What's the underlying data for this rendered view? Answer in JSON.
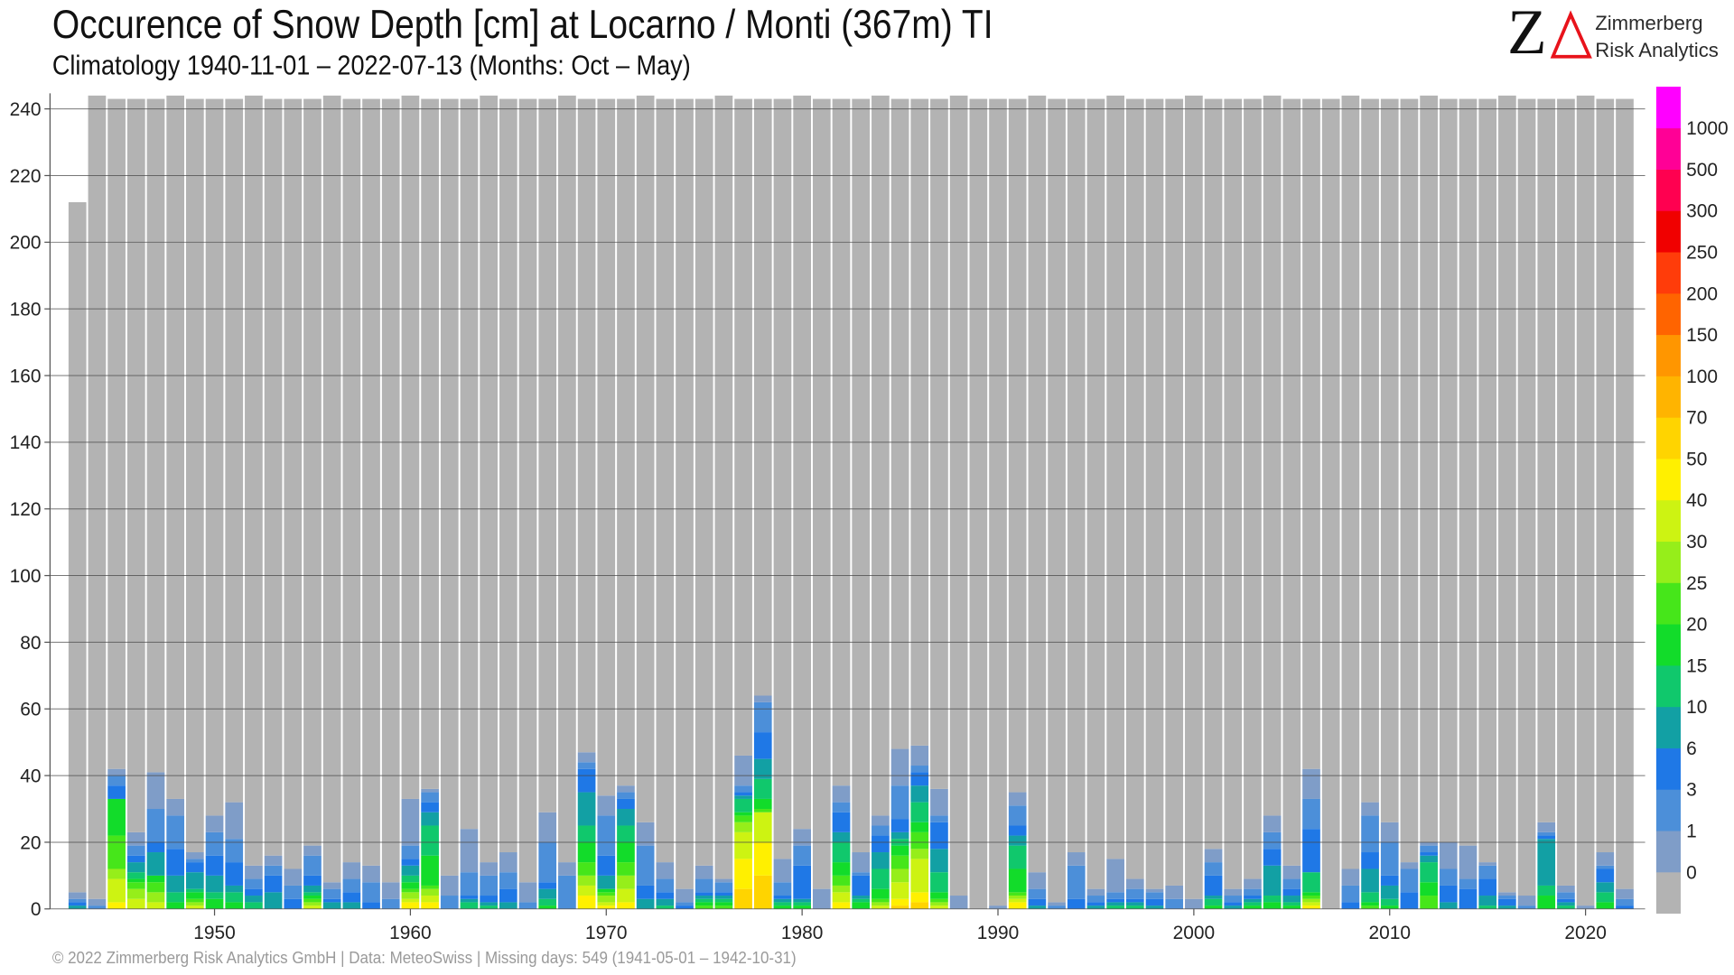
{
  "header": {
    "title": "Occurence of Snow Depth [cm] at Locarno / Monti (367m) TI",
    "subtitle": "Climatology 1940-11-01 – 2022-07-13 (Months: Oct – May)"
  },
  "logo": {
    "letter": "Z",
    "line1": "Zimmerberg",
    "line2": "Risk Analytics",
    "accent_color": "#e8131b"
  },
  "footer": {
    "text": "©  2022 Zimmerberg Risk Analytics GmbH | Data: MeteoSwiss | Missing days: 549 (1941-05-01 – 1942-10-31)"
  },
  "chart_data": {
    "type": "bar",
    "stacked": true,
    "ylim": [
      0,
      240
    ],
    "yticks": [
      0,
      20,
      40,
      60,
      80,
      100,
      120,
      140,
      160,
      180,
      200,
      220,
      240
    ],
    "xticks": [
      1950,
      1960,
      1970,
      1980,
      1990,
      2000,
      2010,
      2020
    ],
    "grid": true,
    "legend": {
      "placement": "right colorbar",
      "labels": [
        "0",
        "1",
        "3",
        "6",
        "10",
        "15",
        "20",
        "25",
        "30",
        "40",
        "50",
        "70",
        "100",
        "150",
        "200",
        "250",
        "300",
        "500",
        "1000"
      ]
    },
    "no_snow_color": "#b3b3b3",
    "class_colors": [
      "#7f9dc8",
      "#4c8fd9",
      "#1f78e6",
      "#12a0a4",
      "#10c86c",
      "#12dc2a",
      "#46e61a",
      "#96ee1a",
      "#cdf312",
      "#fff000",
      "#ffd400",
      "#ffb400",
      "#ff9600",
      "#ff6400",
      "#ff3c0a",
      "#f00000",
      "#ff0050",
      "#ff0096",
      "#ff00ff"
    ],
    "years": [
      1943,
      1944,
      1945,
      1946,
      1947,
      1948,
      1949,
      1950,
      1951,
      1952,
      1953,
      1954,
      1955,
      1956,
      1957,
      1958,
      1959,
      1960,
      1961,
      1962,
      1963,
      1964,
      1965,
      1966,
      1967,
      1968,
      1969,
      1970,
      1971,
      1972,
      1973,
      1974,
      1975,
      1976,
      1977,
      1978,
      1979,
      1980,
      1981,
      1982,
      1983,
      1984,
      1985,
      1986,
      1987,
      1988,
      1989,
      1990,
      1991,
      1992,
      1993,
      1994,
      1995,
      1996,
      1997,
      1998,
      1999,
      2000,
      2001,
      2002,
      2003,
      2004,
      2005,
      2006,
      2007,
      2008,
      2009,
      2010,
      2011,
      2012,
      2013,
      2014,
      2015,
      2016,
      2017,
      2018,
      2019,
      2020,
      2021,
      2022
    ],
    "total_days": [
      212,
      244,
      243,
      243,
      243,
      244,
      243,
      243,
      243,
      244,
      243,
      243,
      243,
      244,
      243,
      243,
      243,
      244,
      243,
      243,
      243,
      244,
      243,
      243,
      243,
      244,
      243,
      243,
      243,
      244,
      243,
      243,
      243,
      244,
      243,
      243,
      243,
      244,
      243,
      243,
      243,
      244,
      243,
      243,
      243,
      244,
      243,
      243,
      243,
      244,
      243,
      243,
      243,
      244,
      243,
      243,
      243,
      244,
      243,
      243,
      243,
      244,
      243,
      243,
      243,
      244,
      243,
      243,
      243,
      244,
      243,
      243,
      243,
      244,
      243,
      243,
      243,
      244,
      243,
      243
    ],
    "stacks": [
      [
        2,
        1,
        1,
        1
      ],
      [
        2,
        1
      ],
      [
        2,
        3,
        4,
        0,
        0,
        11,
        10,
        3,
        7,
        2
      ],
      [
        4,
        3,
        2,
        3,
        2,
        1,
        2,
        3,
        3
      ],
      [
        11,
        10,
        3,
        7,
        0,
        2,
        3,
        3,
        2
      ],
      [
        5,
        10,
        8,
        5,
        3,
        2
      ],
      [
        2,
        1,
        3,
        5,
        1,
        2,
        1,
        1,
        1
      ],
      [
        5,
        7,
        6,
        5,
        2,
        3
      ],
      [
        11,
        7,
        7,
        2,
        3,
        2
      ],
      [
        4,
        3,
        2,
        2,
        2
      ],
      [
        3,
        3,
        5,
        5
      ],
      [
        5,
        4,
        3
      ],
      [
        3,
        6,
        3,
        2,
        1,
        1,
        1,
        1,
        1
      ],
      [
        2,
        3,
        1,
        2
      ],
      [
        5,
        4,
        3,
        2
      ],
      [
        5,
        6,
        2
      ],
      [
        5,
        3
      ],
      [
        14,
        4,
        2,
        3,
        2,
        2,
        1,
        2,
        1,
        2
      ],
      [
        1,
        3,
        3,
        4,
        9,
        9,
        1,
        2,
        2,
        2
      ],
      [
        6,
        4
      ],
      [
        13,
        7,
        1,
        1,
        2
      ],
      [
        4,
        6,
        2,
        1,
        1
      ],
      [
        6,
        5,
        4,
        2
      ],
      [
        6,
        2
      ],
      [
        9,
        12,
        2,
        3,
        2,
        1
      ],
      [
        4,
        10
      ],
      [
        3,
        2,
        7,
        10,
        5,
        6,
        4,
        3,
        3,
        4
      ],
      [
        6,
        12,
        6,
        4,
        0,
        1,
        1,
        2,
        1,
        1
      ],
      [
        2,
        2,
        3,
        5,
        5,
        6,
        4,
        4,
        4,
        2
      ],
      [
        7,
        12,
        4,
        3
      ],
      [
        5,
        4,
        2,
        2,
        1
      ],
      [
        4,
        1,
        1
      ],
      [
        4,
        4,
        1,
        1,
        1,
        1,
        1
      ],
      [
        1,
        3,
        1,
        1,
        1,
        1,
        1
      ],
      [
        9,
        2,
        1,
        1,
        4,
        1,
        2,
        3,
        8,
        9,
        6
      ],
      [
        2,
        9,
        8,
        6,
        6,
        3,
        1,
        0,
        9,
        10,
        10
      ],
      [
        7,
        4,
        1,
        1,
        1,
        1
      ],
      [
        5,
        6,
        10,
        1,
        1,
        1
      ],
      [
        6
      ],
      [
        5,
        3,
        6,
        3,
        6,
        4,
        3,
        2,
        3,
        2
      ],
      [
        6,
        1,
        6,
        1,
        1,
        2
      ],
      [
        3,
        3,
        5,
        5,
        6,
        3,
        1,
        1,
        1
      ],
      [
        11,
        10,
        4,
        2,
        2,
        3,
        4,
        4,
        5,
        2,
        1
      ],
      [
        6,
        2,
        4,
        5,
        6,
        3,
        5,
        3,
        10,
        3,
        2
      ],
      [
        8,
        2,
        8,
        7,
        6,
        2,
        1,
        1,
        1
      ],
      [
        4
      ],
      [],
      [
        1
      ],
      [
        4,
        6,
        3,
        3,
        7,
        7,
        1,
        1,
        1,
        2
      ],
      [
        5,
        3,
        2,
        1
      ],
      [
        1,
        1
      ],
      [
        4,
        10,
        3
      ],
      [
        2,
        2,
        1,
        1
      ],
      [
        10,
        2,
        1,
        1,
        1
      ],
      [
        3,
        3,
        1,
        1,
        1
      ],
      [
        1,
        2,
        2,
        1
      ],
      [
        4,
        3
      ],
      [
        3
      ],
      [
        4,
        4,
        6,
        1,
        2,
        1
      ],
      [
        2,
        2,
        1,
        1
      ],
      [
        3,
        2,
        1,
        1,
        1,
        1
      ],
      [
        5,
        5,
        5,
        9,
        2,
        2
      ],
      [
        4,
        3,
        2,
        2,
        1,
        1
      ],
      [
        9,
        9,
        13,
        0,
        6,
        1,
        1,
        1,
        1,
        1
      ],
      [],
      [
        5,
        5,
        2
      ],
      [
        4,
        11,
        5,
        7,
        3,
        1,
        1
      ],
      [
        6,
        10,
        3,
        4,
        2,
        1
      ],
      [
        2,
        7,
        5
      ],
      [
        1,
        2,
        1,
        2,
        6,
        4,
        4
      ],
      [
        8,
        5,
        5,
        2
      ],
      [
        10,
        3,
        6
      ],
      [
        1,
        4,
        5,
        3,
        1
      ],
      [
        1,
        1,
        2,
        1
      ],
      [
        3,
        1
      ],
      [
        3,
        1,
        1,
        14,
        3,
        4
      ],
      [
        2,
        2,
        1,
        1,
        1
      ],
      [
        1
      ],
      [
        4,
        1,
        4,
        3,
        3,
        2
      ],
      [
        3,
        2,
        1
      ]
    ]
  }
}
